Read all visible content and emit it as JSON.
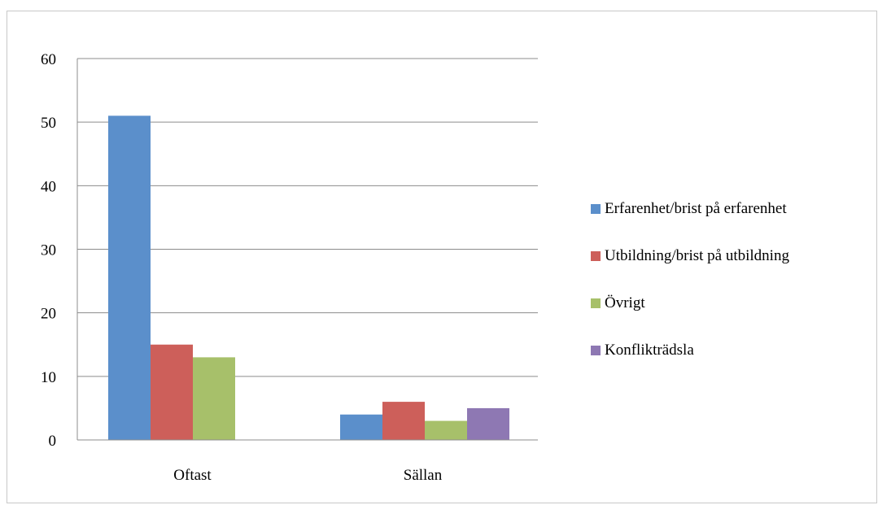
{
  "chart_data": {
    "type": "bar",
    "title": "",
    "xlabel": "",
    "ylabel": "",
    "categories": [
      "Oftast",
      "Sällan"
    ],
    "ylim": [
      0,
      60
    ],
    "yticks": [
      0,
      10,
      20,
      30,
      40,
      50,
      60
    ],
    "grid": true,
    "legend_position": "right",
    "series": [
      {
        "name": "Erfarenhet/brist på erfarenhet",
        "color": "#5b8fcb",
        "values": [
          51,
          4
        ]
      },
      {
        "name": "Utbildning/brist på utbildning",
        "color": "#cd5f5a",
        "values": [
          15,
          6
        ]
      },
      {
        "name": "Övrigt",
        "color": "#a7c06a",
        "values": [
          13,
          3
        ]
      },
      {
        "name": "Konflikträdsla",
        "color": "#8e78b3",
        "values": [
          0,
          5
        ]
      }
    ]
  }
}
